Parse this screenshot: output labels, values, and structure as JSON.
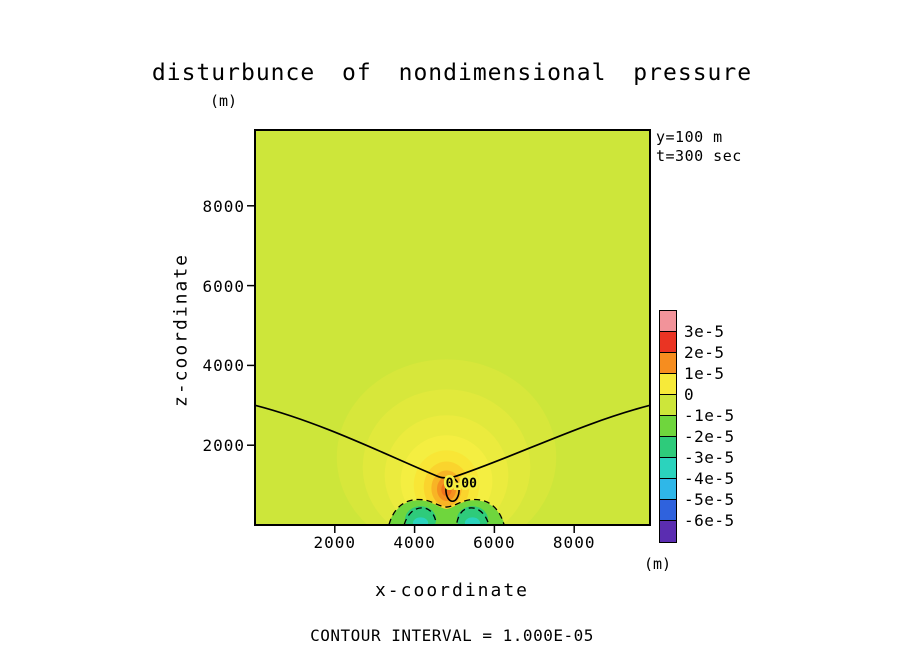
{
  "page": {
    "background": "#ffffff"
  },
  "chart_data": {
    "type": "heatmap",
    "subtype": "filled_contour",
    "title": "disturbunce of nondimensional pressure",
    "xlabel": "x-coordinate",
    "ylabel": "z-coordinate",
    "x_units": "(m)",
    "y_units": "(m)",
    "xlim": [
      0,
      9900
    ],
    "ylim": [
      0,
      9900
    ],
    "x_ticks": [
      "2000",
      "4000",
      "6000",
      "8000"
    ],
    "x_tick_values": [
      2000,
      4000,
      6000,
      8000
    ],
    "y_ticks": [
      "2000",
      "4000",
      "6000",
      "8000"
    ],
    "y_tick_values": [
      2000,
      4000,
      6000,
      8000
    ],
    "annotations": [
      "y=100 m",
      "t=300 sec"
    ],
    "caption": "CONTOUR INTERVAL = 1.000E-05",
    "contour_interval": 1e-05,
    "zero_contour_label": "0.00",
    "colorbar": {
      "labels": [
        "3e-5",
        "2e-5",
        "1e-5",
        "0",
        "-1e-5",
        "-2e-5",
        "-3e-5",
        "-4e-5",
        "-5e-5",
        "-6e-5"
      ],
      "box_colors": [
        "#f2939a",
        "#ea3423",
        "#f68d1f",
        "#f7ea39",
        "#cde63a",
        "#6fd63d",
        "#2ecb7b",
        "#2bd3bd",
        "#2fb7e8",
        "#2f62dd",
        "#5b2db1"
      ]
    },
    "field": {
      "background_color": "#cde63a",
      "positive_core": {
        "x": 4800,
        "z": 900,
        "approx_max": 2e-05
      },
      "negative_lobes": [
        {
          "x": 4150,
          "z": 150
        },
        {
          "x": 5450,
          "z": 150
        }
      ],
      "approx_min": -3e-05,
      "zero_contour_edge_height": 3000,
      "zero_contour_min_height": 1150,
      "halo_ellipses": [
        {
          "cx": 4800,
          "cz": 1700,
          "rx": 2750,
          "rz": 2450,
          "fill": "#d7e73b"
        },
        {
          "cx": 4800,
          "cz": 1450,
          "rx": 2100,
          "rz": 1950,
          "fill": "#e1e93c"
        },
        {
          "cx": 4800,
          "cz": 1250,
          "rx": 1550,
          "rz": 1500,
          "fill": "#ebeb3e"
        },
        {
          "cx": 4800,
          "cz": 1100,
          "rx": 1150,
          "rz": 1150,
          "fill": "#f4ee41"
        },
        {
          "cx": 4800,
          "cz": 1000,
          "rx": 820,
          "rz": 870,
          "fill": "#f8e636"
        },
        {
          "cx": 4800,
          "cz": 950,
          "rx": 570,
          "rz": 640,
          "fill": "#fad42d"
        },
        {
          "cx": 4800,
          "cz": 920,
          "rx": 380,
          "rz": 450,
          "fill": "#f8b425"
        },
        {
          "cx": 4800,
          "cz": 900,
          "rx": 240,
          "rz": 300,
          "fill": "#f5911f"
        },
        {
          "cx": 4800,
          "cz": 890,
          "rx": 130,
          "rz": 170,
          "fill": "#f1731b"
        }
      ],
      "negative_region": {
        "fill": "#6fd63d",
        "bezier": [
          [
            3330,
            0
          ],
          [
            3500,
            420
          ],
          [
            3750,
            640
          ],
          [
            4150,
            620
          ],
          [
            4450,
            600
          ],
          [
            4600,
            430
          ],
          [
            4800,
            400
          ],
          [
            5000,
            430
          ],
          [
            5150,
            600
          ],
          [
            5450,
            620
          ],
          [
            5850,
            640
          ],
          [
            6100,
            420
          ],
          [
            6270,
            0
          ]
        ]
      },
      "negative_cores": [
        {
          "cx": 4150,
          "cz": 140,
          "rx": 390,
          "rz": 330,
          "fill": "#2ecb7b"
        },
        {
          "cx": 5450,
          "cz": 140,
          "rx": 390,
          "rz": 330,
          "fill": "#2ecb7b"
        },
        {
          "cx": 4150,
          "cz": 55,
          "rx": 190,
          "rz": 135,
          "fill": "#2bd3bd"
        },
        {
          "cx": 5450,
          "cz": 55,
          "rx": 190,
          "rz": 135,
          "fill": "#2bd3bd"
        }
      ],
      "zero_contour_bezier": [
        [
          0,
          3000
        ],
        [
          1700,
          2560
        ],
        [
          3300,
          1750
        ],
        [
          4600,
          1210
        ],
        [
          4700,
          1170
        ],
        [
          4900,
          1170
        ],
        [
          5000,
          1210
        ],
        [
          6600,
          1750
        ],
        [
          8200,
          2560
        ],
        [
          9900,
          3000
        ]
      ],
      "dashed_contours": [
        [
          [
            3360,
            10
          ],
          [
            3460,
            380
          ],
          [
            3700,
            640
          ],
          [
            4100,
            640
          ],
          [
            4420,
            640
          ],
          [
            4560,
            470
          ],
          [
            4800,
            450
          ],
          [
            5040,
            470
          ],
          [
            5180,
            640
          ],
          [
            5500,
            640
          ],
          [
            5900,
            640
          ],
          [
            6140,
            380
          ],
          [
            6240,
            10
          ]
        ],
        [
          [
            3740,
            10
          ],
          [
            3820,
            280
          ],
          [
            3990,
            430
          ],
          [
            4180,
            430
          ],
          [
            4370,
            430
          ],
          [
            4490,
            300
          ],
          [
            4540,
            60
          ]
        ],
        [
          [
            5060,
            60
          ],
          [
            5110,
            300
          ],
          [
            5230,
            430
          ],
          [
            5420,
            430
          ],
          [
            5610,
            430
          ],
          [
            5780,
            280
          ],
          [
            5860,
            10
          ]
        ]
      ],
      "core_contour": {
        "cx": 4950,
        "cz": 880,
        "rx": 165,
        "rz": 285
      },
      "zero_label_pos": {
        "x": 5170,
        "z": 1030
      }
    }
  }
}
